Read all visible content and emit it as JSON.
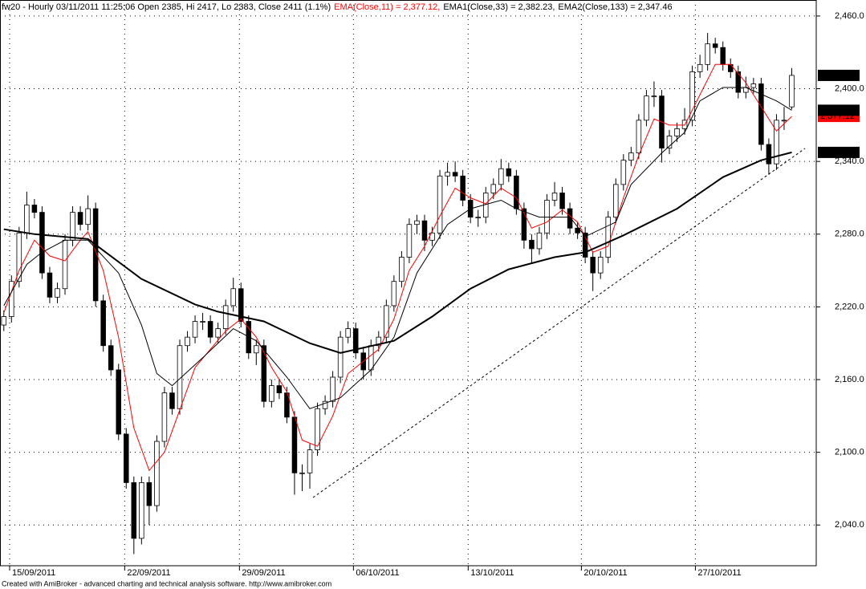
{
  "chart_data": {
    "type": "candlestick",
    "title": "fw20 - Hourly 03/11/2011 11:25:06 Open 2385, Hi 2417, Lo 2383, Close 2411 (1.1%)",
    "open": [
      2205,
      2212,
      2241,
      2281,
      2304,
      2298,
      2248,
      2228,
      2235,
      2275,
      2298,
      2288,
      2301,
      2225,
      2188,
      2168,
      2115,
      2075,
      2029,
      2075,
      2056,
      2109,
      2149,
      2136,
      2188,
      2195,
      2208,
      2208,
      2195,
      2202,
      2221,
      2235,
      2208,
      2182,
      2188,
      2142,
      2155,
      2149,
      2129,
      2083,
      2083,
      2102,
      2136,
      2142,
      2162,
      2195,
      2202,
      2182,
      2168,
      2188,
      2195,
      2221,
      2241,
      2261,
      2288,
      2291,
      2275,
      2281,
      2328,
      2331,
      2328,
      2308,
      2294,
      2294,
      2314,
      2321,
      2334,
      2328,
      2301,
      2275,
      2268,
      2281,
      2308,
      2314,
      2301,
      2285,
      2281,
      2261,
      2248,
      2261,
      2294,
      2321,
      2341,
      2347,
      2374,
      2394,
      2394,
      2351,
      2361,
      2367,
      2374,
      2414,
      2420,
      2437,
      2434,
      2420,
      2414,
      2397,
      2401,
      2404,
      2354,
      2338,
      2374,
      2385
    ],
    "high": [
      2217,
      2246,
      2286,
      2315,
      2309,
      2303,
      2253,
      2240,
      2280,
      2303,
      2303,
      2312,
      2306,
      2230,
      2193,
      2173,
      2120,
      2080,
      2080,
      2080,
      2114,
      2154,
      2154,
      2193,
      2200,
      2213,
      2215,
      2213,
      2207,
      2226,
      2244,
      2240,
      2213,
      2193,
      2193,
      2160,
      2160,
      2154,
      2134,
      2090,
      2107,
      2141,
      2147,
      2167,
      2200,
      2208,
      2207,
      2187,
      2193,
      2200,
      2226,
      2246,
      2266,
      2293,
      2296,
      2296,
      2286,
      2333,
      2339,
      2340,
      2333,
      2313,
      2300,
      2319,
      2326,
      2342,
      2339,
      2333,
      2306,
      2280,
      2286,
      2313,
      2323,
      2319,
      2306,
      2290,
      2286,
      2266,
      2266,
      2299,
      2326,
      2346,
      2352,
      2379,
      2399,
      2406,
      2399,
      2366,
      2372,
      2384,
      2419,
      2428,
      2446,
      2442,
      2439,
      2425,
      2419,
      2410,
      2409,
      2409,
      2359,
      2379,
      2385,
      2417
    ],
    "low": [
      2200,
      2207,
      2236,
      2276,
      2293,
      2243,
      2223,
      2223,
      2230,
      2270,
      2283,
      2283,
      2220,
      2183,
      2163,
      2110,
      2070,
      2016,
      2024,
      2040,
      2051,
      2104,
      2131,
      2131,
      2183,
      2190,
      2201,
      2190,
      2190,
      2197,
      2216,
      2203,
      2177,
      2172,
      2137,
      2137,
      2144,
      2124,
      2065,
      2068,
      2070,
      2097,
      2131,
      2137,
      2157,
      2190,
      2177,
      2160,
      2163,
      2183,
      2190,
      2216,
      2236,
      2256,
      2280,
      2266,
      2270,
      2276,
      2320,
      2323,
      2303,
      2289,
      2286,
      2289,
      2309,
      2316,
      2323,
      2296,
      2268,
      2256,
      2263,
      2276,
      2303,
      2296,
      2280,
      2276,
      2256,
      2233,
      2243,
      2256,
      2289,
      2316,
      2336,
      2342,
      2369,
      2385,
      2339,
      2346,
      2356,
      2362,
      2369,
      2409,
      2415,
      2429,
      2415,
      2409,
      2392,
      2392,
      2396,
      2349,
      2329,
      2333,
      2366,
      2383
    ],
    "close": [
      2212,
      2241,
      2281,
      2304,
      2298,
      2248,
      2228,
      2235,
      2275,
      2298,
      2288,
      2301,
      2225,
      2188,
      2168,
      2115,
      2075,
      2029,
      2075,
      2056,
      2109,
      2149,
      2136,
      2188,
      2195,
      2208,
      2208,
      2195,
      2202,
      2221,
      2235,
      2208,
      2182,
      2188,
      2142,
      2155,
      2149,
      2129,
      2083,
      2083,
      2102,
      2136,
      2142,
      2162,
      2195,
      2202,
      2182,
      2168,
      2188,
      2195,
      2221,
      2241,
      2261,
      2288,
      2291,
      2275,
      2281,
      2328,
      2331,
      2328,
      2308,
      2294,
      2294,
      2314,
      2321,
      2334,
      2328,
      2301,
      2275,
      2268,
      2281,
      2308,
      2314,
      2301,
      2285,
      2281,
      2261,
      2248,
      2261,
      2294,
      2321,
      2341,
      2347,
      2374,
      2394,
      2394,
      2351,
      2361,
      2367,
      2374,
      2414,
      2420,
      2437,
      2434,
      2420,
      2414,
      2397,
      2401,
      2404,
      2354,
      2338,
      2374,
      2374,
      2411
    ],
    "close_label": "2,411",
    "up_color": "#ffffff",
    "down_color": "#000000",
    "series": [
      {
        "name": "EMA(Close,11) = 2,377.12,",
        "color": "#ff0000",
        "line_width": 1,
        "last_label": "2,377.12",
        "x": [
          0,
          2,
          4,
          6,
          8,
          10,
          11,
          13,
          15,
          17,
          19,
          21,
          23,
          25,
          27,
          29,
          31,
          33,
          35,
          37,
          39,
          41,
          43,
          45,
          47,
          49,
          51,
          53,
          55,
          57,
          59,
          61,
          63,
          65,
          67,
          69,
          71,
          73,
          75,
          77,
          79,
          81,
          83,
          85,
          87,
          89,
          91,
          93,
          95,
          97,
          99,
          101,
          103
        ],
        "values": [
          2215,
          2250,
          2275,
          2262,
          2258,
          2275,
          2282,
          2250,
          2195,
          2120,
          2085,
          2100,
          2135,
          2170,
          2185,
          2200,
          2210,
          2195,
          2170,
          2150,
          2110,
          2105,
          2130,
          2165,
          2175,
          2185,
          2210,
          2250,
          2270,
          2295,
          2318,
          2310,
          2305,
          2318,
          2310,
          2285,
          2290,
          2300,
          2290,
          2265,
          2270,
          2310,
          2345,
          2375,
          2370,
          2370,
          2395,
          2420,
          2420,
          2405,
          2385,
          2365,
          2377.12
        ]
      },
      {
        "name": "EMA1(Close,33) = 2,382.23,",
        "color": "#000000",
        "line_width": 1,
        "last_label": "2,382.23",
        "x": [
          0,
          3,
          5,
          8,
          11,
          15,
          18,
          20,
          22,
          26,
          30,
          33,
          37,
          40,
          44,
          48,
          51,
          54,
          58,
          61,
          65,
          67,
          70,
          74,
          76,
          80,
          82,
          86,
          89,
          91,
          94,
          97,
          101,
          103
        ],
        "values": [
          2221,
          2255,
          2265,
          2275,
          2275,
          2248,
          2205,
          2165,
          2155,
          2178,
          2202,
          2192,
          2162,
          2136,
          2145,
          2168,
          2195,
          2248,
          2288,
          2301,
          2308,
          2301,
          2294,
          2294,
          2278,
          2290,
          2321,
          2347,
          2364,
          2390,
          2401,
          2401,
          2390,
          2382.23
        ]
      },
      {
        "name": "EMA2(Close,133) = 2,347.46",
        "color": "#000000",
        "line_width": 2,
        "last_label": "2,347.46",
        "x": [
          0,
          4,
          11,
          18,
          25,
          28,
          34,
          40,
          44,
          51,
          56,
          61,
          66,
          72,
          76,
          81,
          88,
          94,
          99,
          103
        ],
        "values": [
          2284,
          2280,
          2276,
          2243,
          2222,
          2216,
          2208,
          2190,
          2182,
          2192,
          2212,
          2235,
          2251,
          2261,
          2265,
          2279,
          2301,
          2327,
          2341,
          2347.46
        ]
      }
    ],
    "xlim": [
      -0.5,
      106.2
    ],
    "xticks": [
      {
        "value": 0.76,
        "label": "15/09/2011"
      },
      {
        "value": 15.8,
        "label": "22/09/2011"
      },
      {
        "value": 30.8,
        "label": "29/09/2011"
      },
      {
        "value": 45.7,
        "label": "06/10/2011"
      },
      {
        "value": 60.7,
        "label": "13/10/2011"
      },
      {
        "value": 75.5,
        "label": "20/10/2011"
      },
      {
        "value": 90.4,
        "label": "27/10/2011"
      }
    ],
    "ylim": [
      2006.4,
      2473.2
    ],
    "yticks": [
      {
        "value": 2040,
        "label": "2,040.0"
      },
      {
        "value": 2100,
        "label": "2,100.0"
      },
      {
        "value": 2160,
        "label": "2,160.0"
      },
      {
        "value": 2220,
        "label": "2,220.0"
      },
      {
        "value": 2280,
        "label": "2,280.0"
      },
      {
        "value": 2340,
        "label": "2,340.0"
      },
      {
        "value": 2400,
        "label": "2,400.0"
      },
      {
        "value": 2460,
        "label": "2,460.0"
      }
    ],
    "grid": true,
    "footer": "Created with AmiBroker - advanced charting and technical analysis software. http://www.amibroker.com"
  }
}
